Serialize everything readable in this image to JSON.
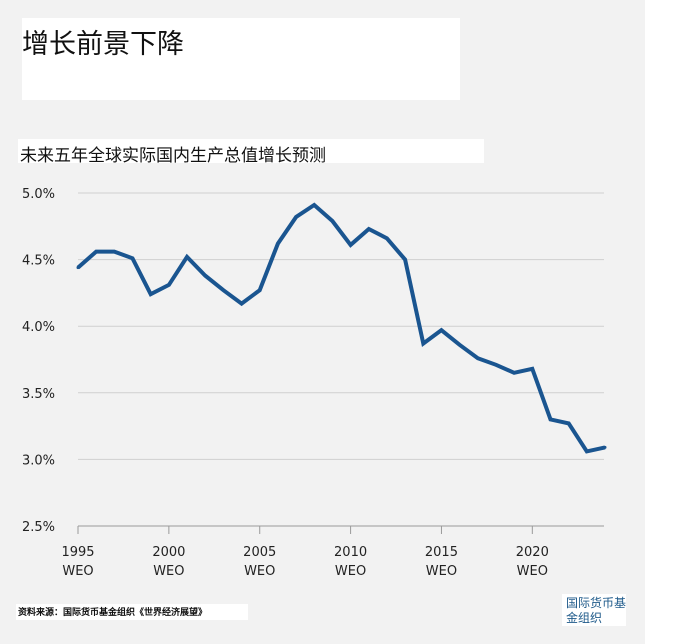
{
  "header": {
    "title": "增长前景下降",
    "subtitle": "未来五年全球实际国内生产总值增长预测"
  },
  "footer": {
    "source": "资料来源：国际货币基金组织《世界经济展望》",
    "logo_line1": "国际货币基",
    "logo_line2": "金组织"
  },
  "colors": {
    "line": "#1a5590",
    "grid": "#d0d0d0",
    "axis": "#9a9a9a",
    "logo": "#1e5a8a"
  },
  "chart_data": {
    "type": "line",
    "title": "未来五年全球实际国内生产总值增长预测",
    "xlabel": "",
    "ylabel": "",
    "grid": true,
    "ylim": [
      2.5,
      5.0
    ],
    "xlim": [
      1995,
      2024
    ],
    "y_ticks": [
      {
        "value": 5.0,
        "label": "5.0%"
      },
      {
        "value": 4.5,
        "label": "4.5%"
      },
      {
        "value": 4.0,
        "label": "4.0%"
      },
      {
        "value": 3.5,
        "label": "3.5%"
      },
      {
        "value": 3.0,
        "label": "3.0%"
      },
      {
        "value": 2.5,
        "label": "2.5%"
      }
    ],
    "x_ticks": [
      {
        "value": 1995,
        "label": "1995",
        "sub": "WEO"
      },
      {
        "value": 2000,
        "label": "2000",
        "sub": "WEO"
      },
      {
        "value": 2005,
        "label": "2005",
        "sub": "WEO"
      },
      {
        "value": 2010,
        "label": "2010",
        "sub": "WEO"
      },
      {
        "value": 2015,
        "label": "2015",
        "sub": "WEO"
      },
      {
        "value": 2020,
        "label": "2020",
        "sub": "WEO"
      }
    ],
    "series": [
      {
        "x": [
          1995,
          1996,
          1997,
          1998,
          1999,
          2000,
          2001,
          2002,
          2003,
          2004,
          2005,
          2006,
          2007,
          2008,
          2009,
          2010,
          2011,
          2012,
          2013,
          2014,
          2015,
          2016,
          2017,
          2018,
          2019,
          2020,
          2021,
          2022,
          2023,
          2024
        ],
        "values": [
          4.44,
          4.56,
          4.56,
          4.51,
          4.24,
          4.31,
          4.52,
          4.38,
          4.27,
          4.17,
          4.27,
          4.62,
          4.82,
          4.91,
          4.79,
          4.61,
          4.73,
          4.66,
          4.5,
          3.87,
          3.97,
          3.86,
          3.76,
          3.71,
          3.65,
          3.68,
          3.3,
          3.27,
          3.06,
          3.09
        ]
      }
    ]
  }
}
